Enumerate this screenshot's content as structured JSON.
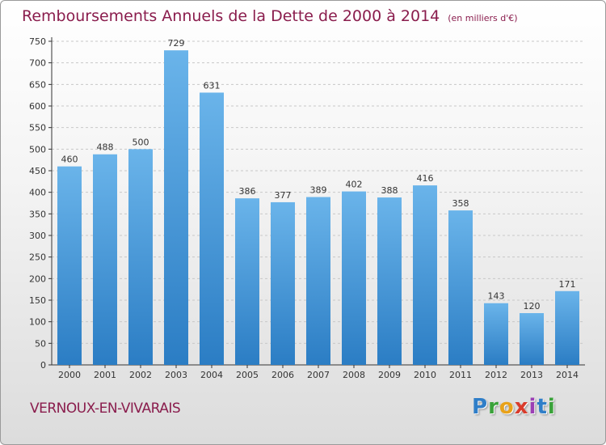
{
  "title": "Remboursements Annuels de la Dette de 2000 à 2014",
  "unit": "(en milliers d'€)",
  "commune": "VERNOUX-EN-VIVARAIS",
  "logo": {
    "letters": [
      "P",
      "r",
      "o",
      "x",
      "i",
      "t",
      "i"
    ]
  },
  "colors": {
    "title": "#8a1d4d",
    "bar_top": "#6ab4ea",
    "bar_bottom": "#2b7dc4"
  },
  "chart_data": {
    "type": "bar",
    "title": "Remboursements Annuels de la Dette de 2000 à 2014",
    "ylabel": "(en milliers d'€)",
    "ylim": [
      0,
      750
    ],
    "yticks": [
      0,
      50,
      100,
      150,
      200,
      250,
      300,
      350,
      400,
      450,
      500,
      550,
      600,
      650,
      700,
      750
    ],
    "grid": true,
    "categories": [
      "2000",
      "2001",
      "2002",
      "2003",
      "2004",
      "2005",
      "2006",
      "2007",
      "2008",
      "2009",
      "2010",
      "2011",
      "2012",
      "2013",
      "2014"
    ],
    "values": [
      460,
      488,
      500,
      729,
      631,
      386,
      377,
      389,
      402,
      388,
      416,
      358,
      143,
      120,
      171
    ]
  }
}
